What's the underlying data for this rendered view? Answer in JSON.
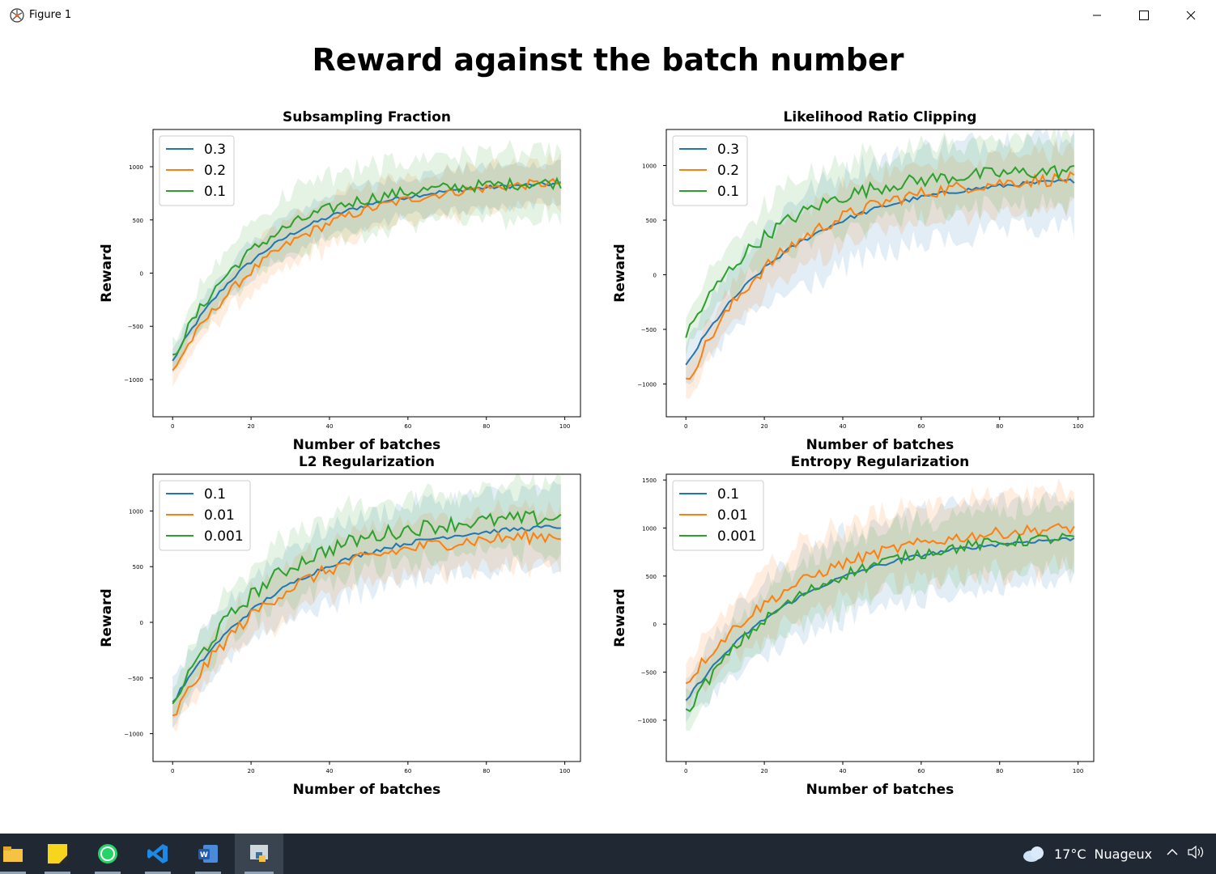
{
  "window": {
    "title": "Figure 1",
    "icons": [
      "figure-app-icon",
      "minimize-icon",
      "maximize-icon",
      "close-icon"
    ]
  },
  "figure": {
    "suptitle": "Reward against the batch number"
  },
  "chart_data": [
    {
      "type": "line",
      "title": "Subsampling Fraction",
      "xlabel": "Number of batches",
      "ylabel": "Reward",
      "xlim": [
        -5,
        104
      ],
      "ylim": [
        -1350,
        1350
      ],
      "xticks": [
        0,
        20,
        40,
        60,
        80,
        100
      ],
      "yticks": [
        -1000,
        -500,
        0,
        500,
        1000
      ],
      "legend": "top-left",
      "grid": false,
      "series": [
        {
          "name": "0.3",
          "color": "#1f77b4",
          "start": -830,
          "end": 840,
          "k": 0.04,
          "noise": 20,
          "band": 150
        },
        {
          "name": "0.2",
          "color": "#ff7f0e",
          "start": -920,
          "end": 850,
          "k": 0.036,
          "noise": 45,
          "band": 170
        },
        {
          "name": "0.1",
          "color": "#2ca02c",
          "start": -800,
          "end": 850,
          "k": 0.046,
          "noise": 55,
          "band": 230
        }
      ]
    },
    {
      "type": "line",
      "title": "Likelihood Ratio Clipping",
      "xlabel": "Number of batches",
      "ylabel": "Reward",
      "xlim": [
        -5,
        104
      ],
      "ylim": [
        -1300,
        1330
      ],
      "xticks": [
        0,
        20,
        40,
        60,
        80,
        100
      ],
      "yticks": [
        -1000,
        -500,
        0,
        500,
        1000
      ],
      "legend": "top-left",
      "grid": false,
      "series": [
        {
          "name": "0.3",
          "color": "#1f77b4",
          "start": -840,
          "end": 860,
          "k": 0.036,
          "noise": 20,
          "band": 330
        },
        {
          "name": "0.2",
          "color": "#ff7f0e",
          "start": -1000,
          "end": 880,
          "k": 0.04,
          "noise": 60,
          "band": 200
        },
        {
          "name": "0.1",
          "color": "#2ca02c",
          "start": -560,
          "end": 950,
          "k": 0.045,
          "noise": 65,
          "band": 240
        }
      ]
    },
    {
      "type": "line",
      "title": "L2 Regularization",
      "xlabel": "Number of batches",
      "ylabel": "Reward",
      "xlim": [
        -5,
        104
      ],
      "ylim": [
        -1250,
        1330
      ],
      "xticks": [
        0,
        20,
        40,
        60,
        80,
        100
      ],
      "yticks": [
        -1000,
        -500,
        0,
        500,
        1000
      ],
      "legend": "top-left",
      "grid": false,
      "series": [
        {
          "name": "0.1",
          "color": "#1f77b4",
          "start": -720,
          "end": 860,
          "k": 0.035,
          "noise": 20,
          "band": 260
        },
        {
          "name": "0.01",
          "color": "#ff7f0e",
          "start": -870,
          "end": 780,
          "k": 0.04,
          "noise": 60,
          "band": 190
        },
        {
          "name": "0.001",
          "color": "#2ca02c",
          "start": -750,
          "end": 940,
          "k": 0.043,
          "noise": 70,
          "band": 230
        }
      ]
    },
    {
      "type": "line",
      "title": "Entropy Regularization",
      "xlabel": "Number of batches",
      "ylabel": "Reward",
      "xlim": [
        -5,
        104
      ],
      "ylim": [
        -1430,
        1560
      ],
      "xticks": [
        0,
        20,
        40,
        60,
        80,
        100
      ],
      "yticks": [
        -1000,
        -500,
        0,
        500,
        1000,
        1500
      ],
      "legend": "top-left",
      "grid": false,
      "series": [
        {
          "name": "0.1",
          "color": "#1f77b4",
          "start": -800,
          "end": 890,
          "k": 0.033,
          "noise": 20,
          "band": 340
        },
        {
          "name": "0.01",
          "color": "#ff7f0e",
          "start": -620,
          "end": 1000,
          "k": 0.034,
          "noise": 60,
          "band": 300
        },
        {
          "name": "0.001",
          "color": "#2ca02c",
          "start": -930,
          "end": 900,
          "k": 0.036,
          "noise": 60,
          "band": 250
        }
      ]
    }
  ],
  "taskbar": {
    "apps": [
      "file-explorer-icon",
      "sticky-notes-icon",
      "whatsapp-icon",
      "vscode-icon",
      "word-icon",
      "python-icon"
    ],
    "weather_temp": "17°C",
    "weather_text": "Nuageux"
  }
}
